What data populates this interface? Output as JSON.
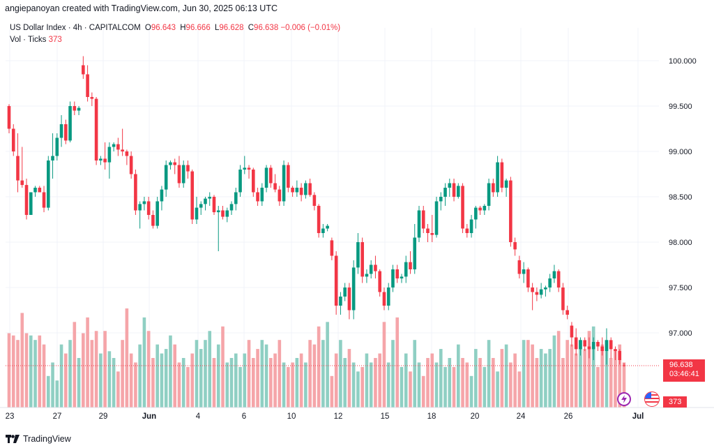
{
  "credit": "angiepanoyan created with TradingView.com, Jun 30, 2025 06:13 UTC",
  "legend": {
    "symbol": "US Dollar Index · 4h · CAPITALCOM",
    "o_label": "O",
    "o": "96.643",
    "h_label": "H",
    "h": "96.666",
    "l_label": "L",
    "l": "96.628",
    "c_label": "C",
    "c": "96.638",
    "change": "−0.006 (−0.01%)",
    "vol_label": "Vol · Ticks",
    "vol_value": "373"
  },
  "price_tag": {
    "price": "96.638",
    "countdown": "03:46:41"
  },
  "vol_tag": "373",
  "brand": "TradingView",
  "colors": {
    "up": "#089981",
    "down": "#f23645",
    "vol_up": "#8fcfc3",
    "vol_down": "#f5a5a9",
    "grid": "#f0f3fa"
  },
  "chart_data": {
    "type": "candlestick",
    "interval": "4h",
    "y_axis_ticks": [
      "100.000",
      "99.500",
      "99.000",
      "98.500",
      "98.000",
      "97.500",
      "97.000"
    ],
    "ylim": [
      96.68,
      100.1
    ],
    "x_axis_labels": [
      "23",
      "27",
      "29",
      "Jun",
      "4",
      "6",
      "10",
      "12",
      "15",
      "18",
      "20",
      "24",
      "26",
      "Jul"
    ],
    "current_price": 96.638,
    "candles": [
      [
        99.5,
        99.52,
        99.2,
        99.25
      ],
      [
        99.25,
        99.3,
        98.95,
        99.0
      ],
      [
        98.95,
        99.2,
        98.55,
        98.68
      ],
      [
        98.68,
        99.05,
        98.6,
        98.63
      ],
      [
        98.63,
        98.7,
        98.25,
        98.3
      ],
      [
        98.3,
        98.55,
        98.3,
        98.55
      ],
      [
        98.55,
        98.62,
        98.5,
        98.6
      ],
      [
        98.6,
        98.62,
        98.55,
        98.55
      ],
      [
        98.55,
        98.62,
        98.33,
        98.38
      ],
      [
        98.38,
        98.95,
        98.35,
        98.9
      ],
      [
        98.9,
        99.2,
        98.7,
        98.95
      ],
      [
        98.95,
        99.2,
        98.9,
        99.15
      ],
      [
        99.15,
        99.4,
        99.05,
        99.3
      ],
      [
        99.3,
        99.35,
        99.08,
        99.12
      ],
      [
        99.12,
        99.55,
        99.1,
        99.5
      ],
      [
        99.5,
        99.55,
        99.4,
        99.45
      ],
      [
        99.45,
        99.5,
        99.4,
        99.48
      ],
      [
        99.95,
        100.05,
        99.8,
        99.85
      ],
      [
        99.85,
        99.95,
        99.55,
        99.6
      ],
      [
        99.6,
        99.65,
        99.5,
        99.58
      ],
      [
        99.58,
        99.6,
        98.85,
        98.9
      ],
      [
        98.9,
        98.95,
        98.85,
        98.92
      ],
      [
        98.92,
        99.1,
        98.8,
        98.88
      ],
      [
        98.88,
        99.1,
        98.7,
        99.05
      ],
      [
        99.05,
        99.1,
        99.0,
        99.08
      ],
      [
        99.08,
        99.15,
        98.95,
        99.02
      ],
      [
        99.02,
        99.25,
        98.95,
        99.0
      ],
      [
        99.0,
        99.02,
        98.85,
        98.95
      ],
      [
        98.95,
        99.0,
        98.7,
        98.75
      ],
      [
        98.75,
        98.8,
        98.3,
        98.35
      ],
      [
        98.35,
        98.45,
        98.15,
        98.42
      ],
      [
        98.42,
        98.5,
        98.35,
        98.45
      ],
      [
        98.45,
        98.5,
        98.25,
        98.3
      ],
      [
        98.3,
        98.35,
        98.15,
        98.18
      ],
      [
        98.18,
        98.5,
        98.15,
        98.45
      ],
      [
        98.45,
        98.62,
        98.35,
        98.58
      ],
      [
        98.58,
        98.9,
        98.5,
        98.85
      ],
      [
        98.85,
        98.9,
        98.8,
        98.88
      ],
      [
        98.88,
        98.92,
        98.75,
        98.85
      ],
      [
        98.85,
        98.95,
        98.6,
        98.65
      ],
      [
        98.65,
        98.9,
        98.6,
        98.85
      ],
      [
        98.85,
        98.9,
        98.7,
        98.78
      ],
      [
        98.78,
        98.8,
        98.2,
        98.25
      ],
      [
        98.25,
        98.5,
        98.2,
        98.38
      ],
      [
        98.38,
        98.45,
        98.3,
        98.42
      ],
      [
        98.42,
        98.5,
        98.35,
        98.48
      ],
      [
        98.48,
        98.55,
        98.4,
        98.5
      ],
      [
        98.5,
        98.52,
        98.3,
        98.33
      ],
      [
        98.33,
        98.4,
        97.9,
        98.35
      ],
      [
        98.35,
        98.4,
        98.25,
        98.28
      ],
      [
        98.28,
        98.38,
        98.22,
        98.35
      ],
      [
        98.35,
        98.45,
        98.3,
        98.42
      ],
      [
        98.42,
        98.6,
        98.35,
        98.55
      ],
      [
        98.55,
        98.85,
        98.5,
        98.8
      ],
      [
        98.8,
        98.95,
        98.75,
        98.82
      ],
      [
        98.82,
        98.85,
        98.7,
        98.8
      ],
      [
        98.8,
        98.82,
        98.5,
        98.55
      ],
      [
        98.55,
        98.6,
        98.4,
        98.45
      ],
      [
        98.45,
        98.65,
        98.4,
        98.6
      ],
      [
        98.6,
        98.85,
        98.55,
        98.82
      ],
      [
        98.82,
        98.85,
        98.6,
        98.65
      ],
      [
        98.65,
        98.75,
        98.55,
        98.58
      ],
      [
        98.58,
        98.62,
        98.4,
        98.45
      ],
      [
        98.45,
        98.9,
        98.4,
        98.85
      ],
      [
        98.85,
        98.88,
        98.55,
        98.6
      ],
      [
        98.6,
        98.62,
        98.5,
        98.55
      ],
      [
        98.55,
        98.68,
        98.5,
        98.6
      ],
      [
        98.6,
        98.65,
        98.45,
        98.52
      ],
      [
        98.52,
        98.68,
        98.48,
        98.65
      ],
      [
        98.65,
        98.7,
        98.5,
        98.52
      ],
      [
        98.52,
        98.55,
        98.35,
        98.4
      ],
      [
        98.4,
        98.42,
        98.05,
        98.1
      ],
      [
        98.1,
        98.2,
        98.05,
        98.15
      ],
      [
        98.15,
        98.2,
        98.12,
        98.18
      ],
      [
        98.02,
        98.05,
        97.8,
        97.85
      ],
      [
        97.85,
        97.9,
        97.2,
        97.3
      ],
      [
        97.3,
        97.45,
        97.2,
        97.4
      ],
      [
        97.4,
        97.55,
        97.35,
        97.5
      ],
      [
        97.5,
        97.55,
        97.15,
        97.25
      ],
      [
        97.25,
        97.8,
        97.15,
        97.72
      ],
      [
        97.72,
        98.1,
        97.65,
        98.0
      ],
      [
        98.0,
        98.05,
        97.55,
        97.62
      ],
      [
        97.62,
        97.7,
        97.55,
        97.65
      ],
      [
        97.65,
        97.8,
        97.6,
        97.75
      ],
      [
        97.75,
        97.85,
        97.6,
        97.68
      ],
      [
        97.68,
        97.7,
        97.4,
        97.45
      ],
      [
        97.45,
        97.5,
        97.25,
        97.3
      ],
      [
        97.3,
        97.55,
        97.25,
        97.5
      ],
      [
        97.5,
        97.75,
        97.45,
        97.7
      ],
      [
        97.7,
        97.75,
        97.55,
        97.6
      ],
      [
        97.6,
        97.65,
        97.55,
        97.62
      ],
      [
        97.62,
        97.85,
        97.55,
        97.78
      ],
      [
        97.78,
        97.9,
        97.65,
        97.7
      ],
      [
        97.7,
        98.2,
        97.65,
        98.05
      ],
      [
        98.05,
        98.4,
        98.0,
        98.35
      ],
      [
        98.35,
        98.4,
        98.1,
        98.15
      ],
      [
        98.15,
        98.2,
        98.0,
        98.1
      ],
      [
        98.1,
        98.3,
        98.0,
        98.08
      ],
      [
        98.08,
        98.5,
        98.05,
        98.45
      ],
      [
        98.45,
        98.55,
        98.35,
        98.5
      ],
      [
        98.5,
        98.65,
        98.4,
        98.6
      ],
      [
        98.6,
        98.7,
        98.5,
        98.65
      ],
      [
        98.65,
        98.7,
        98.45,
        98.5
      ],
      [
        98.5,
        98.65,
        98.48,
        98.62
      ],
      [
        98.62,
        98.65,
        98.1,
        98.15
      ],
      [
        98.15,
        98.2,
        98.05,
        98.1
      ],
      [
        98.1,
        98.3,
        98.05,
        98.25
      ],
      [
        98.25,
        98.4,
        98.15,
        98.38
      ],
      [
        98.38,
        98.4,
        98.3,
        98.35
      ],
      [
        98.35,
        98.42,
        98.3,
        98.4
      ],
      [
        98.4,
        98.7,
        98.35,
        98.65
      ],
      [
        98.65,
        98.7,
        98.5,
        98.55
      ],
      [
        98.55,
        98.95,
        98.5,
        98.88
      ],
      [
        98.88,
        98.92,
        98.55,
        98.6
      ],
      [
        98.6,
        98.7,
        98.5,
        98.68
      ],
      [
        98.68,
        98.72,
        97.95,
        98.0
      ],
      [
        98.0,
        98.05,
        97.85,
        97.92
      ],
      [
        97.8,
        97.85,
        97.6,
        97.65
      ],
      [
        97.65,
        97.78,
        97.55,
        97.7
      ],
      [
        97.7,
        97.72,
        97.45,
        97.5
      ],
      [
        97.5,
        97.55,
        97.25,
        97.45
      ],
      [
        97.45,
        97.5,
        97.35,
        97.42
      ],
      [
        97.42,
        97.55,
        97.38,
        97.48
      ],
      [
        97.48,
        97.52,
        97.4,
        97.5
      ],
      [
        97.5,
        97.65,
        97.45,
        97.6
      ],
      [
        97.6,
        97.75,
        97.55,
        97.68
      ],
      [
        97.68,
        97.7,
        97.45,
        97.5
      ],
      [
        97.5,
        97.55,
        97.2,
        97.25
      ],
      [
        97.25,
        97.3,
        97.15,
        97.2
      ],
      [
        97.08,
        97.12,
        96.85,
        96.95
      ],
      [
        96.95,
        97.05,
        96.75,
        96.82
      ],
      [
        96.82,
        96.95,
        96.75,
        96.92
      ],
      [
        96.92,
        96.95,
        96.8,
        96.85
      ],
      [
        96.85,
        96.95,
        96.72,
        96.82
      ],
      [
        96.82,
        96.95,
        96.7,
        96.9
      ],
      [
        96.9,
        96.92,
        96.8,
        96.85
      ],
      [
        96.85,
        96.95,
        96.75,
        96.8
      ],
      [
        96.8,
        97.05,
        96.65,
        96.92
      ],
      [
        96.92,
        96.95,
        96.72,
        96.82
      ],
      [
        96.82,
        96.85,
        96.7,
        96.8
      ],
      [
        96.8,
        96.82,
        96.65,
        96.7
      ],
      [
        96.643,
        96.666,
        96.628,
        96.638
      ]
    ],
    "volumes": [
      33,
      32,
      30,
      42,
      33,
      32,
      30,
      32,
      28,
      14,
      20,
      12,
      28,
      24,
      30,
      38,
      22,
      33,
      40,
      30,
      34,
      24,
      34,
      25,
      22,
      16,
      30,
      44,
      24,
      20,
      28,
      40,
      34,
      22,
      28,
      24,
      26,
      32,
      28,
      20,
      22,
      18,
      24,
      30,
      26,
      30,
      34,
      22,
      28,
      36,
      20,
      22,
      24,
      18,
      24,
      30,
      22,
      26,
      30,
      28,
      22,
      24,
      30,
      20,
      18,
      20,
      22,
      24,
      20,
      30,
      28,
      36,
      30,
      38,
      14,
      24,
      30,
      22,
      26,
      20,
      16,
      18,
      24,
      20,
      22,
      24,
      38,
      20,
      30,
      40,
      18,
      24,
      16,
      30,
      20,
      14,
      22,
      24,
      20,
      26,
      18,
      22,
      18,
      28,
      22,
      20,
      14,
      26,
      22,
      18,
      30,
      22,
      16,
      26,
      28,
      20,
      24,
      16,
      30,
      30,
      28,
      22,
      26,
      24,
      26,
      32,
      34,
      22,
      30,
      28,
      24,
      30,
      26,
      34,
      36,
      18,
      28,
      30,
      22,
      26,
      28,
      20,
      24,
      18,
      22,
      14,
      24,
      16,
      26,
      10
    ]
  }
}
